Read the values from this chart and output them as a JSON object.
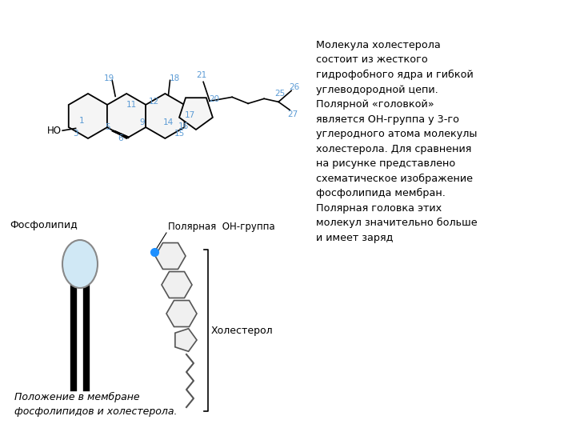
{
  "bg_color": "#ffffff",
  "text_color": "#000000",
  "label_color": "#5b9bd5",
  "ring_color": "#000000",
  "ring_fill": "#f5f5f5",
  "phospholipid_head_color": "#d0e8f5",
  "phospholipid_head_edge": "#888888",
  "oh_dot_color": "#1e90ff",
  "right_text": "Молекула холестерола\nсостоит из жесткого\nгидрофобного ядра и гибкой\nуглеводородной цепи.\nПолярной «головкой»\nявляется ОН-группа у 3-го\nуглеродного атома молекулы\nхолестерола. Для сравнения\nна рисунке представлено\nсхематическое изображение\nфосфолипида мембран.\nПолярная головка этих\nмолекул значительно больше\nи имеет заряд",
  "bottom_text": "Положение в мембране\nфосфолипидов и холестерола.",
  "label_fosfolipid": "Фосфолипид",
  "label_polar": "Полярная  ОН-группа",
  "label_cholesterol": "Холестерол"
}
